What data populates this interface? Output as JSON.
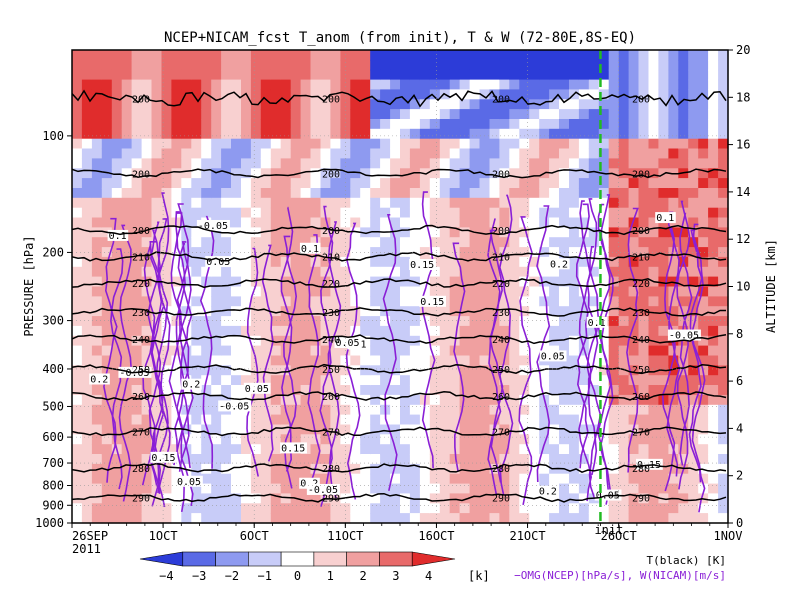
{
  "chart_data": {
    "type": "heatmap",
    "title": "NCEP+NICAM_fcst T_anom (from init), T & W  (72-80E,8S-EQ)",
    "xlabel": "",
    "ylabel": "PRESSURE [hPa]",
    "ylabel_right": "ALTITUDE [km]",
    "x_tick_labels": [
      "26SEP\n2011",
      "1OCT",
      "6OCT",
      "11OCT",
      "16OCT",
      "21OCT",
      "26OCT",
      "1NOV"
    ],
    "x_range": [
      "2011-09-26",
      "2011-11-01"
    ],
    "y_pressure_ticks": [
      100,
      200,
      300,
      400,
      500,
      600,
      700,
      800,
      900,
      1000
    ],
    "y_pressure_range": [
      1000,
      60
    ],
    "y_pressure_scale": "log",
    "y_altitude_ticks": [
      0,
      2,
      4,
      6,
      8,
      10,
      12,
      14,
      16,
      18,
      20
    ],
    "init_marker": {
      "date": "2011-10-25",
      "label": "init",
      "color": "#22bb22"
    },
    "colorbar": {
      "levels": [
        -4,
        -3,
        -2,
        -1,
        0,
        1,
        2,
        3,
        4
      ],
      "labels": [
        "−4",
        "−3",
        "−2",
        "−1",
        "0",
        "1",
        "2",
        "3",
        "4"
      ],
      "colors": [
        "#2c3cd8",
        "#5a6ae6",
        "#8e9af0",
        "#c8ccf8",
        "#ffffff",
        "#f8d0d0",
        "#f0a0a0",
        "#e86a6a",
        "#e02c2c"
      ],
      "unit": "[k]"
    },
    "temperature_contours": {
      "levels": [
        200,
        210,
        220,
        230,
        240,
        250,
        260,
        270,
        280,
        290
      ],
      "color": "#000000",
      "pressure_hpa": [
        80,
        125,
        175,
        205,
        240,
        285,
        335,
        400,
        470,
        580,
        720,
        860
      ],
      "labels_shown": [
        "200",
        "200",
        "200",
        "210",
        "220",
        "230",
        "240",
        "250",
        "260",
        "270",
        "280",
        "290"
      ]
    },
    "vertical_velocity_contours": {
      "levels": [
        0.05,
        0.1,
        0.15,
        0.2
      ],
      "color": "#8a1fd6",
      "labels_shown": [
        "0.05",
        "0.1",
        "0.15",
        "0.2",
        "-0.05"
      ]
    },
    "legend": {
      "temp": "T(black) [K]",
      "wind": "−OMG(NCEP)[hPa/s], W(NICAM)[m/s]"
    }
  }
}
